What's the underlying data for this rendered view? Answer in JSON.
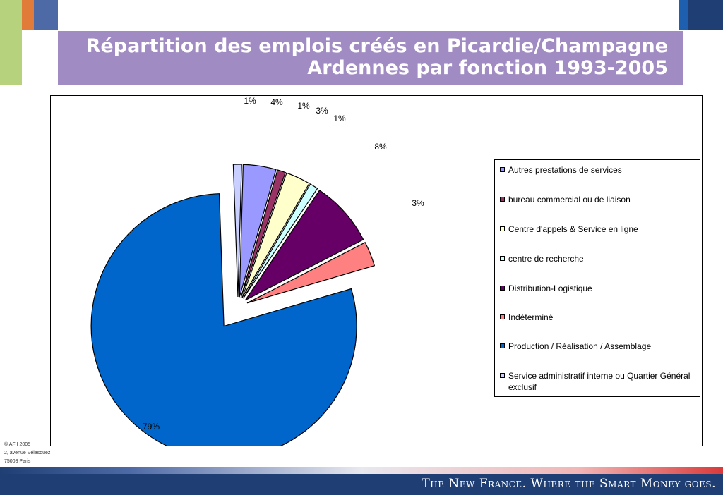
{
  "title": "Répartition des emplois créés en Picardie/Champagne Ardennes par fonction 1993-2005",
  "title_lines": [
    "Répartition des emplois créés en Picardie/Champagne",
    "Ardennes par fonction 1993-2005"
  ],
  "colors": {
    "title_band": "#a08bc3",
    "footer": "#1e3e74",
    "accent_green": "#b7d27d",
    "accent_orange": "#e07b3a",
    "accent_blue": "#4e6aa6"
  },
  "footer": {
    "slogan": "The New France. Where the Smart Money goes.",
    "credit_lines": [
      "© AFII 2005",
      "2, avenue Vélasquez",
      "75008 Paris"
    ]
  },
  "chart_data": {
    "type": "pie",
    "exploded": true,
    "legend_position": "right",
    "slices": [
      {
        "name": "Service administratif interne ou Quartier Général exclusif",
        "value": 1,
        "label": "1%",
        "color": "#c9cfff"
      },
      {
        "name": "Autres prestations de services",
        "value": 4,
        "label": "4%",
        "color": "#9999ff"
      },
      {
        "name": "bureau commercial ou de liaison",
        "value": 1,
        "label": "1%",
        "color": "#993366"
      },
      {
        "name": "Centre d'appels & Service en ligne",
        "value": 3,
        "label": "3%",
        "color": "#ffffcc"
      },
      {
        "name": "centre de recherche",
        "value": 1,
        "label": "1%",
        "color": "#ccffff"
      },
      {
        "name": "Distribution-Logistique",
        "value": 8,
        "label": "8%",
        "color": "#660066"
      },
      {
        "name": "Indéterminé",
        "value": 3,
        "label": "3%",
        "color": "#ff8080"
      },
      {
        "name": "Production / Réalisation / Assemblage",
        "value": 79,
        "label": "79%",
        "color": "#0066cc"
      }
    ],
    "legend": [
      {
        "label": "Autres prestations de services",
        "color": "#9999ff"
      },
      {
        "label": "bureau commercial ou de liaison",
        "color": "#993366"
      },
      {
        "label": "Centre d'appels & Service en ligne",
        "color": "#ffffcc"
      },
      {
        "label": "centre de recherche",
        "color": "#ccffff"
      },
      {
        "label": "Distribution-Logistique",
        "color": "#660066"
      },
      {
        "label": "Indéterminé",
        "color": "#ff8080"
      },
      {
        "label": "Production / Réalisation / Assemblage",
        "color": "#0066cc"
      },
      {
        "label": "Service administratif interne ou Quartier Général exclusif",
        "color": "#c9cfff"
      }
    ]
  }
}
